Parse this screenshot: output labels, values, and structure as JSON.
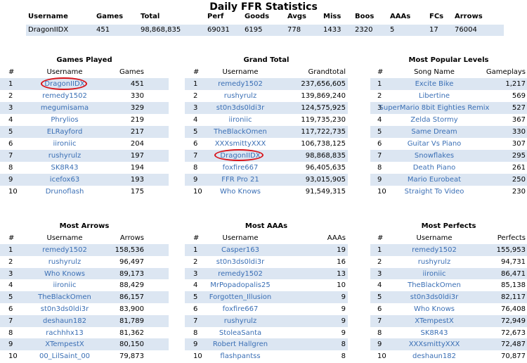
{
  "title": "Daily FFR Statistics",
  "summary": {
    "headers": [
      "Username",
      "Games",
      "Total",
      "Perf",
      "Goods",
      "Avgs",
      "Miss",
      "Boos",
      "AAAs",
      "FCs",
      "Arrows"
    ],
    "row": [
      "DragonIIDX",
      "451",
      "98,868,835",
      "69031",
      "6195",
      "778",
      "1433",
      "2320",
      "5",
      "17",
      "76004"
    ]
  },
  "tables": [
    {
      "title": "Games Played",
      "headers": [
        "#",
        "Username",
        "Games"
      ],
      "rows": [
        [
          "1",
          "DragonIIDX",
          "451"
        ],
        [
          "2",
          "remedy1502",
          "330"
        ],
        [
          "3",
          "megumisama",
          "329"
        ],
        [
          "4",
          "Phrylios",
          "219"
        ],
        [
          "5",
          "ELRayford",
          "217"
        ],
        [
          "6",
          "iironiic",
          "204"
        ],
        [
          "7",
          "rushyrulz",
          "197"
        ],
        [
          "8",
          "SK8R43",
          "194"
        ],
        [
          "9",
          "icefox63",
          "193"
        ],
        [
          "10",
          "Drunoflash",
          "175"
        ]
      ]
    },
    {
      "title": "Grand Total",
      "headers": [
        "#",
        "Username",
        "Grandtotal"
      ],
      "rows": [
        [
          "1",
          "remedy1502",
          "237,656,605"
        ],
        [
          "2",
          "rushyrulz",
          "139,869,240"
        ],
        [
          "3",
          "st0n3ds0ldi3r",
          "124,575,925"
        ],
        [
          "4",
          "iironiic",
          "119,735,230"
        ],
        [
          "5",
          "TheBlackOmen",
          "117,722,735"
        ],
        [
          "6",
          "XXXsmittyXXX",
          "106,738,125"
        ],
        [
          "7",
          "DragonIIDX",
          "98,868,835"
        ],
        [
          "8",
          "foxfire667",
          "96,405,635"
        ],
        [
          "9",
          "FFR Pro 21",
          "93,015,905"
        ],
        [
          "10",
          "Who Knows",
          "91,549,315"
        ]
      ]
    },
    {
      "title": "Most Popular Levels",
      "headers": [
        "#",
        "Song Name",
        "Gameplays"
      ],
      "rows": [
        [
          "1",
          "Excite Bike",
          "1,217"
        ],
        [
          "2",
          "Libertine",
          "569"
        ],
        [
          "3",
          "SuperMario 8bit Eighties Remix",
          "527"
        ],
        [
          "4",
          "Zelda Stormy",
          "367"
        ],
        [
          "5",
          "Same Dream",
          "330"
        ],
        [
          "6",
          "Guitar Vs Piano",
          "307"
        ],
        [
          "7",
          "Snowflakes",
          "295"
        ],
        [
          "8",
          "Death Piano",
          "261"
        ],
        [
          "9",
          "Mario Eurobeat",
          "250"
        ],
        [
          "10",
          "Straight To Video",
          "230"
        ]
      ]
    },
    {
      "title": "Most Arrows",
      "headers": [
        "#",
        "Username",
        "Arrows"
      ],
      "rows": [
        [
          "1",
          "remedy1502",
          "158,536"
        ],
        [
          "2",
          "rushyrulz",
          "96,497"
        ],
        [
          "3",
          "Who Knows",
          "89,173"
        ],
        [
          "4",
          "iironiic",
          "88,429"
        ],
        [
          "5",
          "TheBlackOmen",
          "86,157"
        ],
        [
          "6",
          "st0n3ds0ldi3r",
          "83,900"
        ],
        [
          "7",
          "deshaun182",
          "81,789"
        ],
        [
          "8",
          "rachhhx13",
          "81,362"
        ],
        [
          "9",
          "XTempestX",
          "80,150"
        ],
        [
          "10",
          "00_LilSaint_00",
          "79,873"
        ]
      ]
    },
    {
      "title": "Most AAAs",
      "headers": [
        "#",
        "Username",
        "AAAs"
      ],
      "rows": [
        [
          "1",
          "Casper163",
          "19"
        ],
        [
          "2",
          "st0n3ds0ldi3r",
          "16"
        ],
        [
          "3",
          "remedy1502",
          "13"
        ],
        [
          "4",
          "MrPopadopalis25",
          "10"
        ],
        [
          "5",
          "Forgotten_Illusion",
          "9"
        ],
        [
          "6",
          "foxfire667",
          "9"
        ],
        [
          "7",
          "rushyrulz",
          "9"
        ],
        [
          "8",
          "StoleaSanta",
          "9"
        ],
        [
          "9",
          "Robert Hallgren",
          "8"
        ],
        [
          "10",
          "flashpantss",
          "8"
        ]
      ]
    },
    {
      "title": "Most Perfects",
      "headers": [
        "#",
        "Username",
        "Perfects"
      ],
      "rows": [
        [
          "1",
          "remedy1502",
          "155,953"
        ],
        [
          "2",
          "rushyrulz",
          "94,731"
        ],
        [
          "3",
          "iironiic",
          "86,471"
        ],
        [
          "4",
          "TheBlackOmen",
          "85,138"
        ],
        [
          "5",
          "st0n3ds0ldi3r",
          "82,117"
        ],
        [
          "6",
          "Who Knows",
          "76,408"
        ],
        [
          "7",
          "XTempestX",
          "72,949"
        ],
        [
          "8",
          "SK8R43",
          "72,673"
        ],
        [
          "9",
          "XXXsmittyXXX",
          "72,487"
        ],
        [
          "10",
          "deshaun182",
          "70,877"
        ]
      ]
    }
  ]
}
